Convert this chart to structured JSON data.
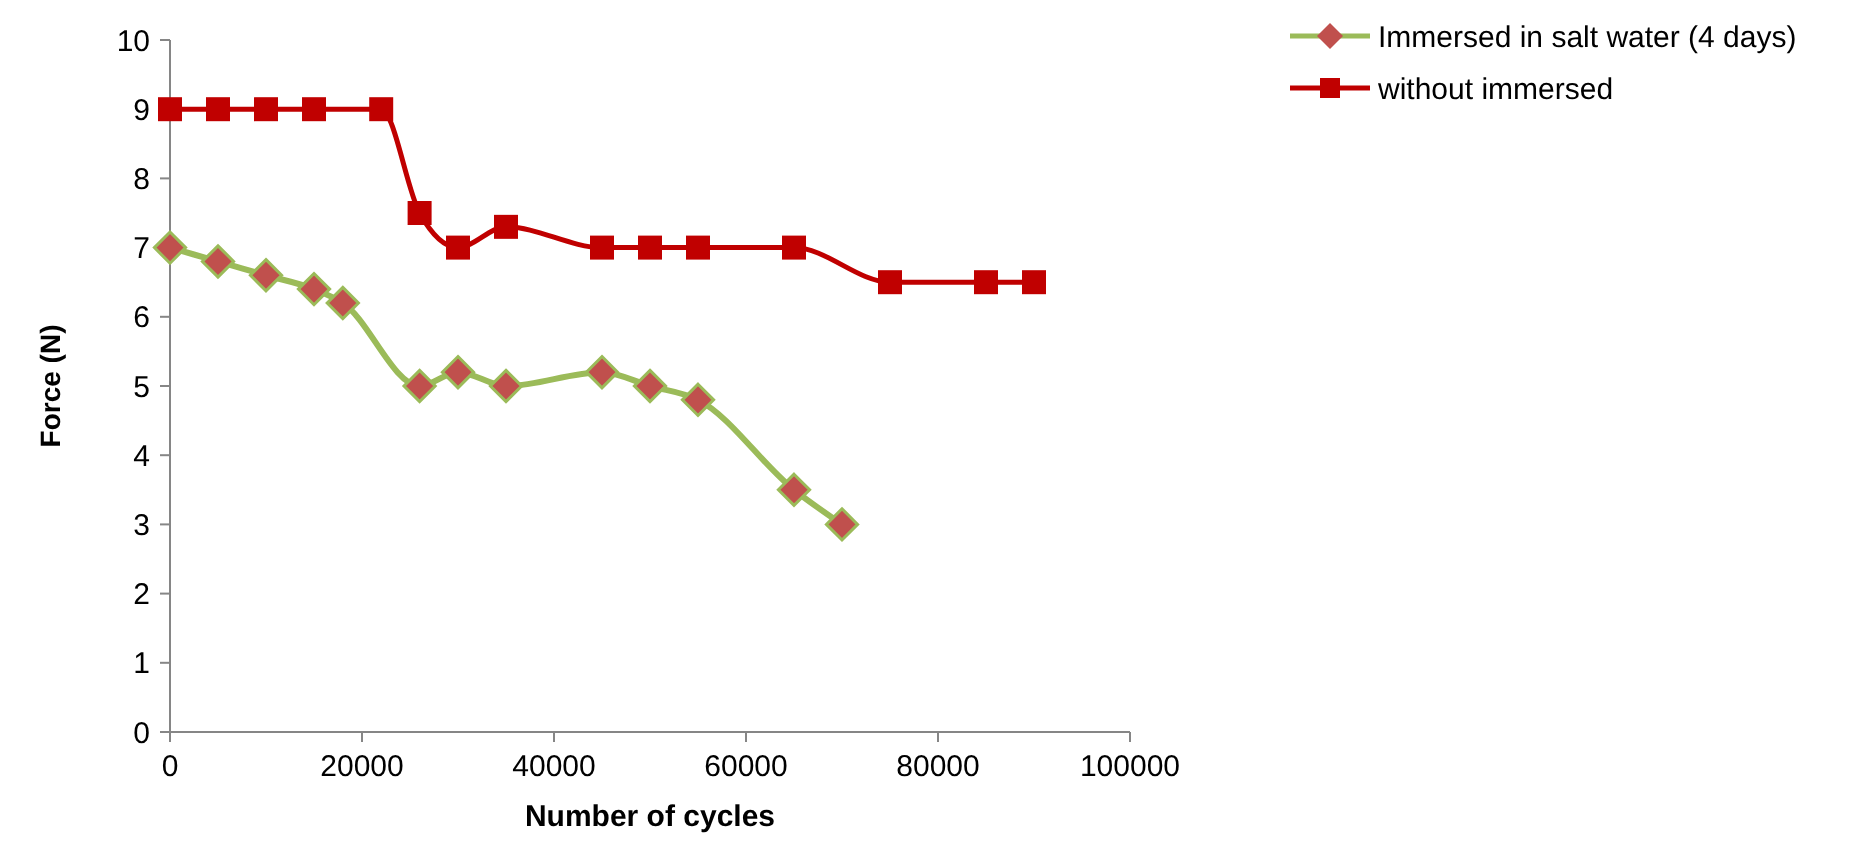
{
  "chart_data": {
    "type": "line",
    "xlabel": "Number of cycles",
    "ylabel": "Force (N)",
    "xlim": [
      0,
      100000
    ],
    "xticks": [
      0,
      20000,
      40000,
      60000,
      80000,
      100000
    ],
    "ylim": [
      0,
      10
    ],
    "yticks": [
      0,
      1,
      2,
      3,
      4,
      5,
      6,
      7,
      8,
      9,
      10
    ],
    "grid": false,
    "legend": "top right",
    "series": [
      {
        "name": "Immersed in salt water (4 days)",
        "color": "#9bbb59",
        "marker": "diamond",
        "x": [
          0,
          5000,
          10000,
          15000,
          18000,
          26000,
          30000,
          35000,
          45000,
          50000,
          55000,
          65000,
          70000
        ],
        "values": [
          7,
          6.8,
          6.6,
          6.4,
          6.2,
          5,
          5.2,
          5,
          5.2,
          5,
          4.8,
          3.5,
          3
        ]
      },
      {
        "name": "without immersed",
        "color": "#c00000",
        "marker": "square",
        "x": [
          0,
          5000,
          10000,
          15000,
          22000,
          26000,
          30000,
          35000,
          45000,
          50000,
          55000,
          65000,
          75000,
          85000,
          90000
        ],
        "values": [
          9,
          9,
          9,
          9,
          9,
          7.5,
          7,
          7.3,
          7,
          7,
          7,
          7,
          6.5,
          6.5,
          6.5
        ]
      }
    ]
  }
}
